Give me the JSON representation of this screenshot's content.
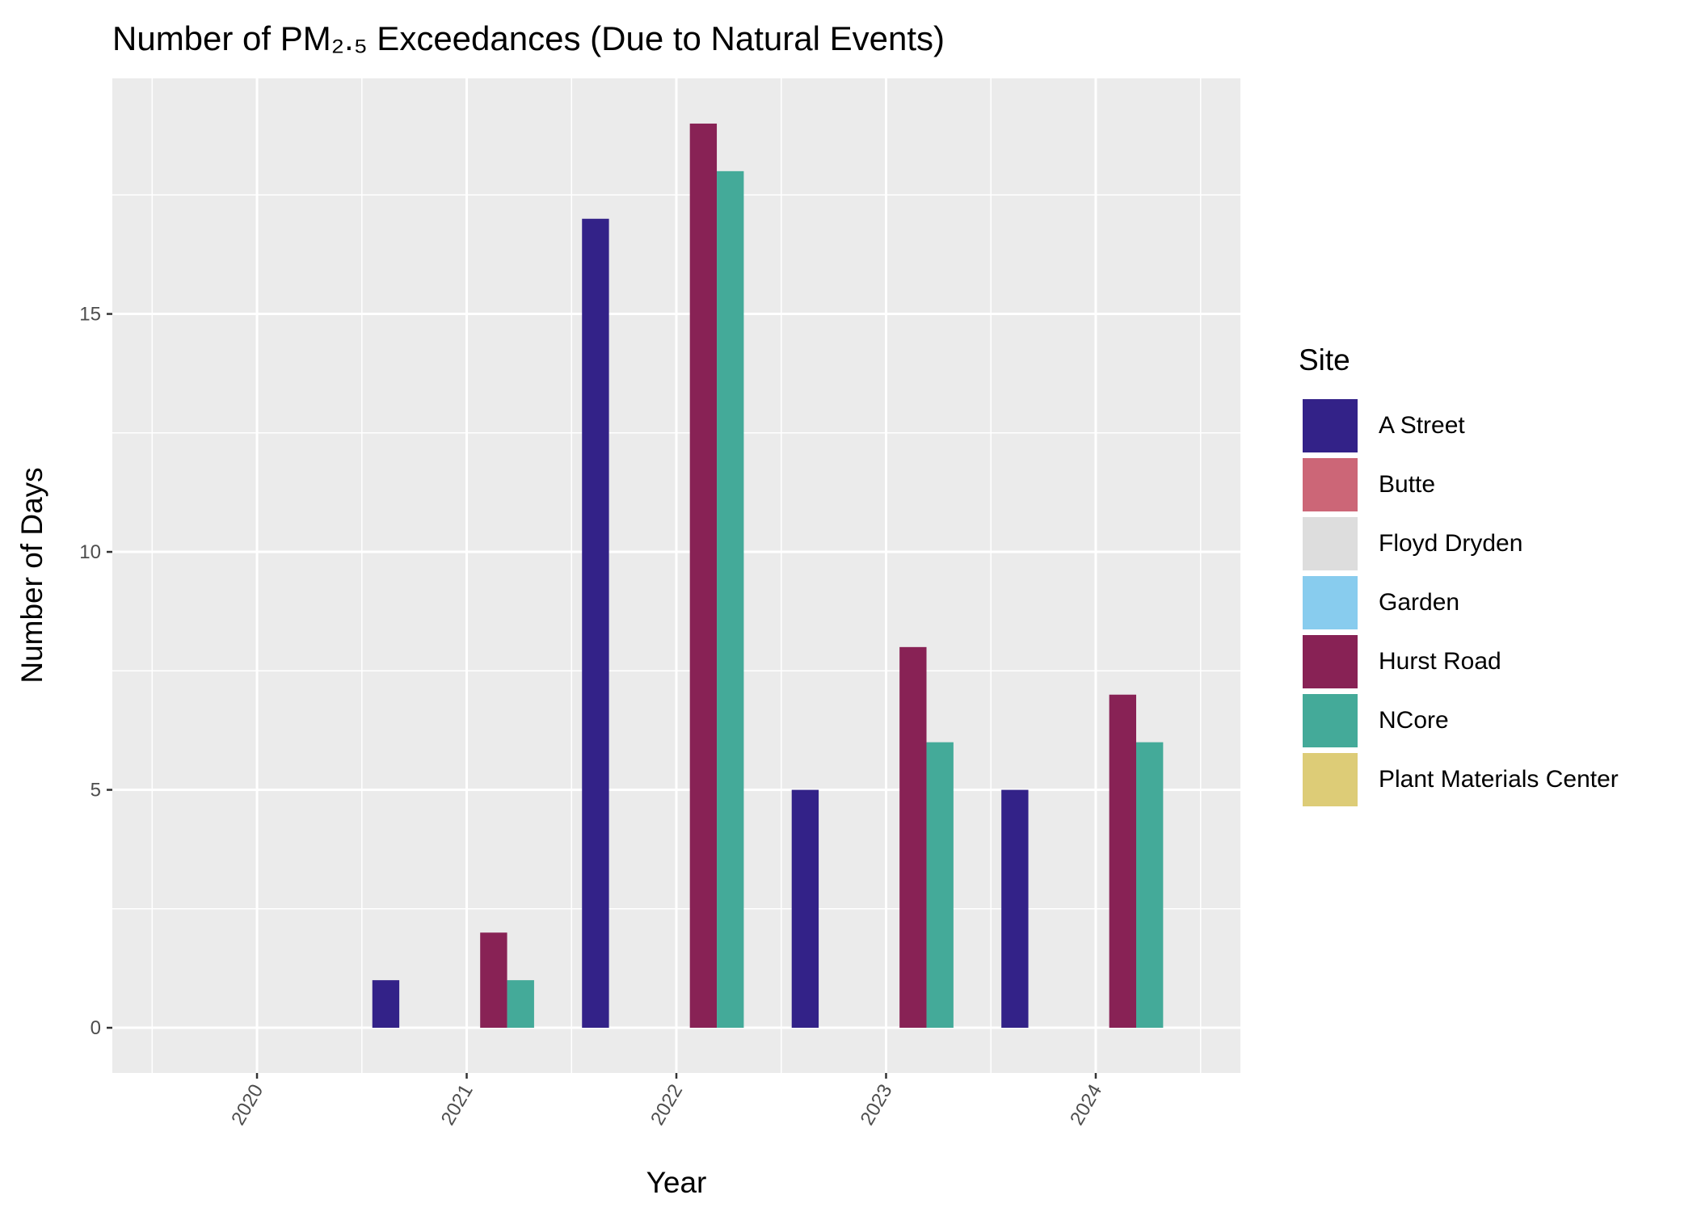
{
  "chart_data": {
    "type": "bar",
    "title": "Number of PM₂.₅ Exceedances (Due to Natural Events)",
    "xlabel": "Year",
    "ylabel": "Number of Days",
    "categories": [
      "2020",
      "2021",
      "2022",
      "2023",
      "2024"
    ],
    "ylim": [
      -0.95,
      19.95
    ],
    "yticks": [
      0,
      5,
      10,
      15
    ],
    "grid": true,
    "legend": {
      "title": "Site",
      "placement": "right"
    },
    "series": [
      {
        "name": "A Street",
        "color": "#332288",
        "values": [
          0,
          1,
          17,
          5,
          5
        ]
      },
      {
        "name": "Butte",
        "color": "#CC6677",
        "values": [
          0,
          0,
          0,
          0,
          0
        ]
      },
      {
        "name": "Floyd Dryden",
        "color": "#DDDDDD",
        "values": [
          0,
          0,
          0,
          0,
          0
        ]
      },
      {
        "name": "Garden",
        "color": "#88CCEE",
        "values": [
          0,
          0,
          0,
          0,
          0
        ]
      },
      {
        "name": "Hurst Road",
        "color": "#882255",
        "values": [
          0,
          2,
          19,
          8,
          7
        ]
      },
      {
        "name": "NCore",
        "color": "#44AA99",
        "values": [
          0,
          1,
          18,
          6,
          6
        ]
      },
      {
        "name": "Plant Materials Center",
        "color": "#DDCC77",
        "values": [
          0,
          0,
          0,
          0,
          0
        ]
      }
    ]
  }
}
